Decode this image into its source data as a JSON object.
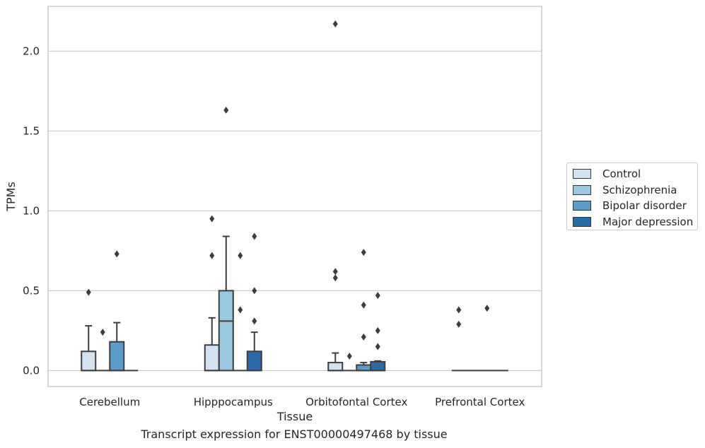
{
  "caption": "Transcript expression for ENST00000497468 by tissue",
  "chart_data": {
    "type": "box",
    "xlabel": "Tissue",
    "ylabel": "TPMs",
    "ylim": [
      -0.1,
      2.28
    ],
    "yticks": [
      "0.0",
      "0.5",
      "1.0",
      "1.5",
      "2.0"
    ],
    "ytick_values": [
      0,
      0.5,
      1.0,
      1.5,
      2.0
    ],
    "grid": "horizontal",
    "legend_position": "right",
    "categories": [
      "Cerebellum",
      "Hipppocampus",
      "Orbitofontal Cortex",
      "Prefrontal Cortex"
    ],
    "series": [
      {
        "name": "Control",
        "color": "#d2e2f1",
        "boxes": [
          {
            "q1": 0,
            "median": 0,
            "q3": 0.12,
            "whisker_low": 0,
            "whisker_high": 0.28,
            "outliers": [
              0.49
            ]
          },
          {
            "q1": 0,
            "median": 0,
            "q3": 0.16,
            "whisker_low": 0,
            "whisker_high": 0.33,
            "outliers": [
              0.72,
              0.95
            ]
          },
          {
            "q1": 0,
            "median": 0,
            "q3": 0.05,
            "whisker_low": 0,
            "whisker_high": 0.11,
            "outliers": [
              0.58,
              0.62,
              2.17
            ]
          },
          {
            "q1": 0,
            "median": 0,
            "q3": 0,
            "whisker_low": 0,
            "whisker_high": 0,
            "outliers": [
              0.29,
              0.38
            ]
          }
        ]
      },
      {
        "name": "Schizophrenia",
        "color": "#9ac8e0",
        "boxes": [
          {
            "q1": 0,
            "median": 0,
            "q3": 0,
            "whisker_low": 0,
            "whisker_high": 0,
            "outliers": [
              0.24
            ]
          },
          {
            "q1": 0,
            "median": 0.31,
            "q3": 0.5,
            "whisker_low": 0,
            "whisker_high": 0.84,
            "outliers": [
              1.63
            ]
          },
          {
            "q1": 0,
            "median": 0,
            "q3": 0,
            "whisker_low": 0,
            "whisker_high": 0,
            "outliers": [
              0.09
            ]
          },
          {
            "q1": 0,
            "median": 0,
            "q3": 0,
            "whisker_low": 0,
            "whisker_high": 0,
            "outliers": []
          }
        ]
      },
      {
        "name": "Bipolar disorder",
        "color": "#5a9bc8",
        "boxes": [
          {
            "q1": 0,
            "median": 0,
            "q3": 0.18,
            "whisker_low": 0,
            "whisker_high": 0.3,
            "outliers": [
              0.73
            ]
          },
          {
            "q1": 0,
            "median": 0,
            "q3": 0,
            "whisker_low": 0,
            "whisker_high": 0,
            "outliers": [
              0.38,
              0.72
            ]
          },
          {
            "q1": 0,
            "median": 0,
            "q3": 0.035,
            "whisker_low": 0,
            "whisker_high": 0.05,
            "outliers": [
              0.21,
              0.41,
              0.74
            ]
          },
          {
            "q1": 0,
            "median": 0,
            "q3": 0,
            "whisker_low": 0,
            "whisker_high": 0,
            "outliers": [
              0.39
            ]
          }
        ]
      },
      {
        "name": "Major depression",
        "color": "#2a6aa8",
        "boxes": [
          {
            "q1": 0,
            "median": 0,
            "q3": 0,
            "whisker_low": 0,
            "whisker_high": 0,
            "outliers": []
          },
          {
            "q1": 0,
            "median": 0,
            "q3": 0.12,
            "whisker_low": 0,
            "whisker_high": 0.24,
            "outliers": [
              0.31,
              0.5,
              0.84
            ]
          },
          {
            "q1": 0,
            "median": 0,
            "q3": 0.055,
            "whisker_low": 0,
            "whisker_high": 0.06,
            "outliers": [
              0.15,
              0.25,
              0.47
            ]
          },
          {
            "q1": 0,
            "median": 0,
            "q3": 0,
            "whisker_low": 0,
            "whisker_high": 0,
            "outliers": []
          }
        ]
      }
    ]
  }
}
